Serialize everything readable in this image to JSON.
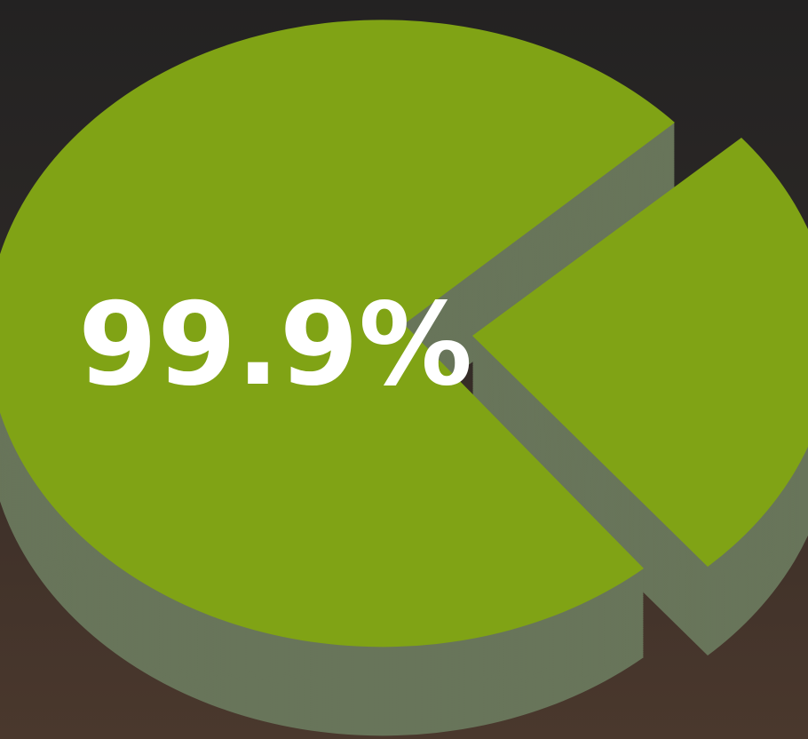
{
  "graphic": {
    "label": "99.9%"
  }
}
